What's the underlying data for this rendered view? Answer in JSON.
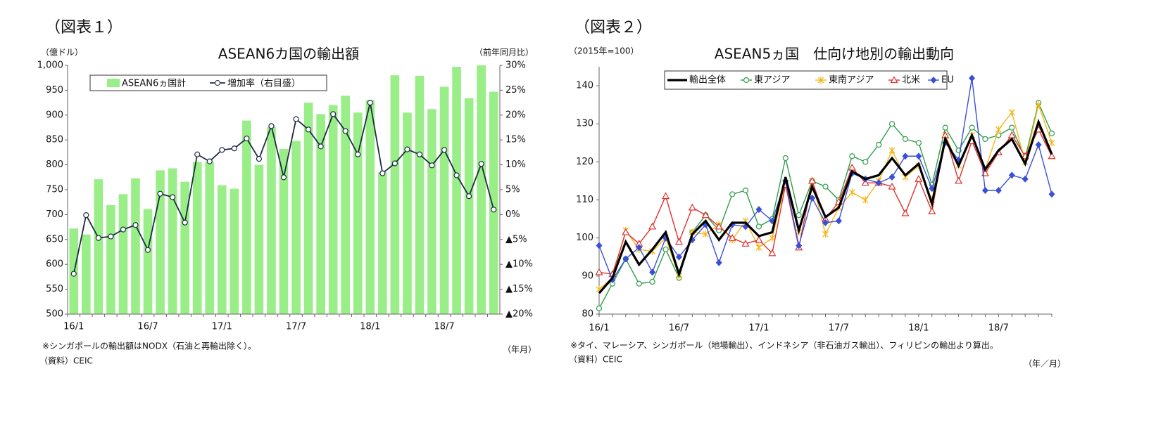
{
  "chart_data": [
    {
      "type": "bar",
      "figure_label": "（図表１）",
      "title": "ASEAN6カ国の輸出額",
      "y_axis_label": "（億ドル）",
      "y2_axis_label": "（前年同月比）",
      "x_axis_label": "（年月）",
      "note": "※シンガポールの輸出額はNODX（石油と再輸出除く）。",
      "source": "（資料）CEIC",
      "categories": [
        "16/1",
        null,
        null,
        null,
        null,
        null,
        "16/7",
        null,
        null,
        null,
        null,
        null,
        "17/1",
        null,
        null,
        null,
        null,
        null,
        "17/7",
        null,
        null,
        null,
        null,
        null,
        "18/1",
        null,
        null,
        null,
        null,
        null,
        "18/7",
        null,
        null,
        null,
        null
      ],
      "series": [
        {
          "name": "ASEAN6ヵ国計",
          "type": "bar",
          "color": "#99ee88",
          "values": [
            672,
            660,
            771,
            719,
            741,
            773,
            711,
            789,
            793,
            766,
            806,
            806,
            759,
            752,
            889,
            800,
            876,
            832,
            848,
            925,
            902,
            920,
            939,
            905,
            930,
            785,
            980,
            905,
            979,
            912,
            957,
            997,
            934,
            1000,
            947
          ]
        },
        {
          "name": "増加率（右目盛）",
          "type": "line",
          "axis": "y2",
          "color": "#1f2a44",
          "values": [
            -11.9,
            -0.1,
            -4.7,
            -4.4,
            -3,
            -2.1,
            -7.1,
            4.2,
            3.5,
            -1.6,
            12.1,
            10.7,
            13,
            13.3,
            15.3,
            11.2,
            17.8,
            7.5,
            19.2,
            17.1,
            13.7,
            20.2,
            16.8,
            12.1,
            22.5,
            8.3,
            10.3,
            13.1,
            12.1,
            9.9,
            13,
            7.9,
            3.7,
            10.2,
            1
          ]
        }
      ],
      "ylim": [
        500,
        1000
      ],
      "yticks": [
        500,
        550,
        600,
        650,
        700,
        750,
        800,
        850,
        900,
        950,
        {
          "value": 1000,
          "label": "1,000"
        }
      ],
      "y2lim": [
        -20,
        30
      ],
      "y2ticks": [
        {
          "value": -20,
          "label": "▲20%"
        },
        {
          "value": -15,
          "label": "▲15%"
        },
        {
          "value": -10,
          "label": "▲10%"
        },
        {
          "value": -5,
          "label": "▲5%"
        },
        {
          "value": 0,
          "label": "0%"
        },
        {
          "value": 5,
          "label": "5%"
        },
        {
          "value": 10,
          "label": "10%"
        },
        {
          "value": 15,
          "label": "15%"
        },
        {
          "value": 20,
          "label": "20%"
        },
        {
          "value": 25,
          "label": "25%"
        },
        {
          "value": 30,
          "label": "30%"
        }
      ],
      "grid": false,
      "legend": "top-left"
    },
    {
      "type": "line",
      "figure_label": "（図表２）",
      "title": "ASEAN5ヵ国　仕向け地別の輸出動向",
      "y_axis_label": "（2015年=100）",
      "x_axis_label": "（年／月）",
      "note": "※タイ、マレーシア、シンガポール（地場輸出）、インドネシア（非石油ガス輸出）、フィリピンの輸出より算出。",
      "source": "（資料）CEIC",
      "categories": [
        "16/1",
        null,
        null,
        null,
        null,
        null,
        "16/7",
        null,
        null,
        null,
        null,
        null,
        "17/1",
        null,
        null,
        null,
        null,
        null,
        "17/7",
        null,
        null,
        null,
        null,
        null,
        "18/1",
        null,
        null,
        null,
        null,
        null,
        "18/7",
        null,
        null,
        null,
        null
      ],
      "series": [
        {
          "name": "輸出全体",
          "color": "#000000",
          "marker": "none",
          "values": [
            85.5,
            89.5,
            99,
            93,
            97,
            101.5,
            90.5,
            101,
            104.5,
            99.5,
            104,
            104,
            100.5,
            101.5,
            116,
            102,
            113.5,
            105.5,
            108,
            117.5,
            115.5,
            116.5,
            121,
            116.5,
            119.5,
            109,
            126,
            119,
            127,
            118,
            123,
            126,
            119.5,
            130.5,
            122
          ]
        },
        {
          "name": "東アジア",
          "color": "#2e9e48",
          "marker": "circle",
          "values": [
            81.5,
            88,
            94.5,
            88,
            88.5,
            97,
            89.5,
            101.5,
            106,
            102,
            111.5,
            112.5,
            103,
            105,
            121,
            106,
            115,
            113.5,
            110,
            121.5,
            120,
            124.5,
            130,
            126,
            125,
            114,
            129,
            123,
            129,
            126,
            127,
            129,
            121,
            135.5,
            127.5
          ]
        },
        {
          "name": "東南アジア",
          "color": "#f2b81c",
          "marker": "x",
          "values": [
            86.5,
            89.5,
            102,
            97,
            96.5,
            100,
            90,
            101.5,
            101,
            103.5,
            99.5,
            104.5,
            97.5,
            100,
            114.5,
            101.5,
            115,
            101,
            108,
            112,
            110,
            115,
            123,
            116,
            119,
            110,
            127,
            119,
            127,
            118,
            128.5,
            133,
            120,
            135,
            125
          ]
        },
        {
          "name": "北米",
          "color": "#e0302a",
          "marker": "triangle",
          "values": [
            91,
            90.5,
            101.5,
            98.5,
            103,
            111,
            99,
            108,
            106,
            103,
            100,
            98.5,
            99.5,
            96,
            114,
            97.5,
            115,
            105,
            109.5,
            118.5,
            114.5,
            114.5,
            113.5,
            106.5,
            115.5,
            107,
            127,
            115,
            125.5,
            117,
            122.5,
            127,
            121.5,
            128.5,
            121.5
          ]
        },
        {
          "name": "EU",
          "color": "#3a4fd8",
          "marker": "diamond",
          "values": [
            98,
            89,
            94.5,
            97.5,
            91,
            100,
            95,
            99.5,
            103.5,
            93.5,
            103.5,
            103,
            107.5,
            104.5,
            115,
            98,
            110.5,
            104,
            104.5,
            117,
            115.5,
            114.5,
            116,
            121.5,
            121.5,
            113,
            125,
            120.5,
            142,
            112.5,
            112.5,
            116.5,
            115.5,
            124.5,
            111.5
          ]
        }
      ],
      "ylim": [
        80,
        145
      ],
      "yticks": [
        80,
        90,
        100,
        110,
        120,
        130,
        140
      ],
      "grid": false,
      "legend": "top-left"
    }
  ]
}
